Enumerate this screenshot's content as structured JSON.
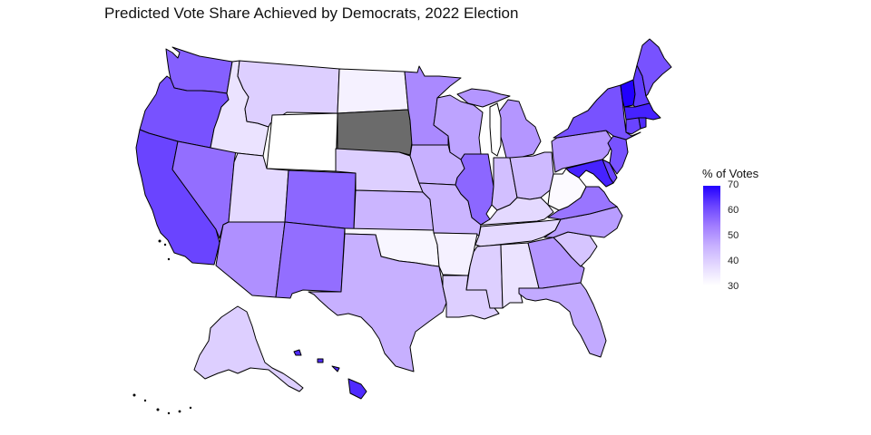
{
  "chart_data": {
    "type": "choropleth",
    "title": "Predicted Vote Share Achieved by Democrats, 2022 Election",
    "legend": {
      "title": "% of Votes",
      "ticks": [
        "70",
        "60",
        "50",
        "40",
        "30"
      ],
      "min": 30,
      "max": 70,
      "placement": "right"
    },
    "colors": {
      "low": "#ffffff",
      "high": "#2200ff",
      "missing": "#6b6b6b"
    },
    "states": [
      {
        "id": "WA",
        "value": 58
      },
      {
        "id": "OR",
        "value": 60
      },
      {
        "id": "CA",
        "value": 62
      },
      {
        "id": "NV",
        "value": 56
      },
      {
        "id": "ID",
        "value": 36
      },
      {
        "id": "MT",
        "value": 40
      },
      {
        "id": "WY",
        "value": 30
      },
      {
        "id": "UT",
        "value": 38
      },
      {
        "id": "AZ",
        "value": 51
      },
      {
        "id": "CO",
        "value": 57
      },
      {
        "id": "NM",
        "value": 56
      },
      {
        "id": "ND",
        "value": 33
      },
      {
        "id": "SD",
        "value": null
      },
      {
        "id": "NE",
        "value": 40
      },
      {
        "id": "KS",
        "value": 45
      },
      {
        "id": "OK",
        "value": 32
      },
      {
        "id": "TX",
        "value": 46
      },
      {
        "id": "MN",
        "value": 52
      },
      {
        "id": "IA",
        "value": 46
      },
      {
        "id": "MO",
        "value": 45
      },
      {
        "id": "AR",
        "value": 33
      },
      {
        "id": "LA",
        "value": 40
      },
      {
        "id": "WI",
        "value": 48
      },
      {
        "id": "IL",
        "value": 57
      },
      {
        "id": "MI",
        "value": 50
      },
      {
        "id": "IN",
        "value": 43
      },
      {
        "id": "OH",
        "value": 44
      },
      {
        "id": "KY",
        "value": 38
      },
      {
        "id": "TN",
        "value": 38
      },
      {
        "id": "MS",
        "value": 40
      },
      {
        "id": "AL",
        "value": 36
      },
      {
        "id": "GA",
        "value": 50
      },
      {
        "id": "FL",
        "value": 47
      },
      {
        "id": "SC",
        "value": 42
      },
      {
        "id": "NC",
        "value": 49
      },
      {
        "id": "VA",
        "value": 55
      },
      {
        "id": "WV",
        "value": 31
      },
      {
        "id": "PA",
        "value": 50
      },
      {
        "id": "NY",
        "value": 60
      },
      {
        "id": "ME",
        "value": 60
      },
      {
        "id": "VT",
        "value": 70
      },
      {
        "id": "NH",
        "value": 63
      },
      {
        "id": "MA",
        "value": 66
      },
      {
        "id": "CT",
        "value": 62
      },
      {
        "id": "RI",
        "value": 65
      },
      {
        "id": "NJ",
        "value": 60
      },
      {
        "id": "DE",
        "value": 62
      },
      {
        "id": "MD",
        "value": 66
      },
      {
        "id": "AK",
        "value": 40
      },
      {
        "id": "HI",
        "value": 65
      }
    ]
  }
}
